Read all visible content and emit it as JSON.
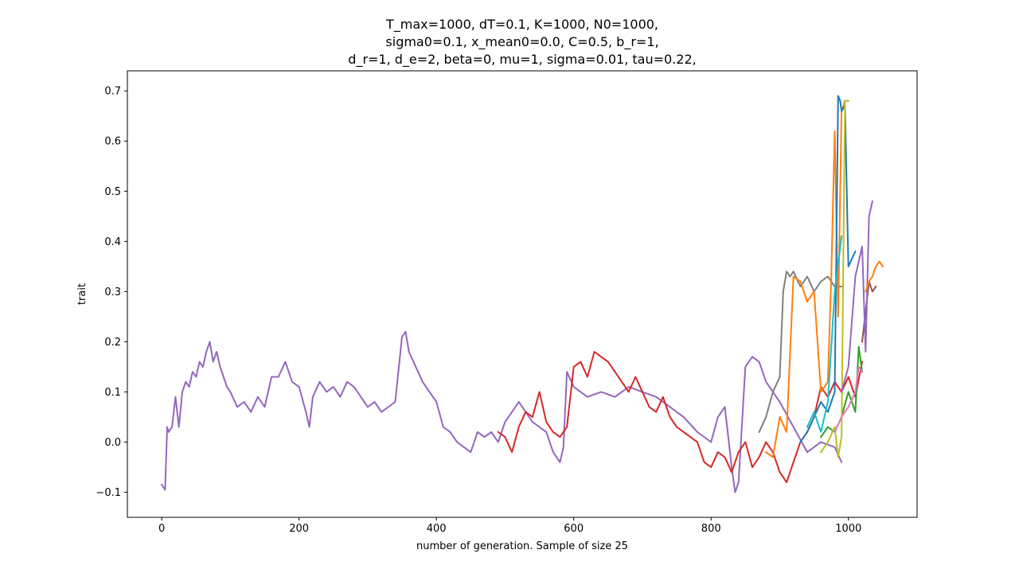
{
  "chart_data": {
    "type": "line",
    "title_lines": [
      "T_max=1000, dT=0.1, K=1000, N0=1000,",
      "sigma0=0.1, x_mean0=0.0, C=0.5, b_r=1,",
      "d_r=1, d_e=2, beta=0, mu=1, sigma=0.01, tau=0.22,"
    ],
    "xlabel": "number of generation. Sample of size 25",
    "ylabel": "trait",
    "xlim": [
      -50,
      1100
    ],
    "ylim": [
      -0.15,
      0.74
    ],
    "xticks": [
      0,
      200,
      400,
      600,
      800,
      1000
    ],
    "xtick_labels": [
      "0",
      "200",
      "400",
      "600",
      "800",
      "1000"
    ],
    "yticks": [
      -0.1,
      0.0,
      0.1,
      0.2,
      0.3,
      0.4,
      0.5,
      0.6,
      0.7
    ],
    "ytick_labels": [
      "−0.1",
      "0.0",
      "0.1",
      "0.2",
      "0.3",
      "0.4",
      "0.5",
      "0.6",
      "0.7"
    ],
    "grid": false,
    "legend": "none",
    "series": [
      {
        "color": "#9467bd",
        "x": [
          0,
          5,
          8,
          10,
          15,
          20,
          25,
          30,
          35,
          40,
          45,
          50,
          55,
          60,
          65,
          70,
          75,
          80,
          85,
          90,
          95,
          100,
          110,
          120,
          130,
          140,
          150,
          160,
          170,
          180,
          190,
          200,
          210,
          215,
          220,
          230,
          240,
          250,
          260,
          270,
          280,
          290,
          300,
          310,
          320,
          330,
          340,
          350,
          355,
          360,
          370,
          380,
          390,
          400,
          410,
          420,
          430,
          440,
          450,
          460,
          470,
          480,
          490,
          500,
          510,
          520,
          530,
          540,
          550,
          560,
          570,
          580,
          585,
          590,
          600,
          620,
          640,
          660,
          680,
          700,
          720,
          740,
          760,
          780,
          800,
          810,
          820,
          830,
          835,
          840,
          850,
          860,
          870,
          880,
          890,
          900,
          920,
          940,
          960,
          980,
          990
        ],
        "y": [
          -0.085,
          -0.095,
          0.03,
          0.02,
          0.03,
          0.09,
          0.03,
          0.1,
          0.12,
          0.11,
          0.14,
          0.13,
          0.16,
          0.15,
          0.18,
          0.2,
          0.16,
          0.18,
          0.15,
          0.13,
          0.11,
          0.1,
          0.07,
          0.08,
          0.06,
          0.09,
          0.07,
          0.13,
          0.13,
          0.16,
          0.12,
          0.11,
          0.06,
          0.03,
          0.09,
          0.12,
          0.1,
          0.11,
          0.09,
          0.12,
          0.11,
          0.09,
          0.07,
          0.08,
          0.06,
          0.07,
          0.08,
          0.21,
          0.22,
          0.18,
          0.15,
          0.12,
          0.1,
          0.08,
          0.03,
          0.02,
          0.0,
          -0.01,
          -0.02,
          0.02,
          0.01,
          0.02,
          0.0,
          0.04,
          0.06,
          0.08,
          0.06,
          0.04,
          0.03,
          0.02,
          -0.02,
          -0.04,
          -0.01,
          0.14,
          0.11,
          0.09,
          0.1,
          0.09,
          0.11,
          0.1,
          0.09,
          0.07,
          0.05,
          0.02,
          0.0,
          0.05,
          0.07,
          -0.05,
          -0.1,
          -0.08,
          0.15,
          0.17,
          0.16,
          0.12,
          0.1,
          0.08,
          0.03,
          -0.02,
          0.0,
          -0.01,
          -0.04
        ]
      },
      {
        "color": "#d62728",
        "x": [
          490,
          500,
          510,
          520,
          530,
          540,
          550,
          560,
          570,
          580,
          590,
          600,
          610,
          620,
          630,
          640,
          650,
          660,
          670,
          680,
          690,
          700,
          710,
          720,
          730,
          740,
          750,
          760,
          770,
          780,
          790,
          800,
          810,
          820,
          830,
          840,
          850,
          860,
          870,
          880,
          890,
          900,
          910,
          920,
          930,
          940,
          950,
          960,
          970,
          980,
          990,
          1000,
          1010,
          1020
        ],
        "y": [
          0.02,
          0.01,
          -0.02,
          0.03,
          0.06,
          0.05,
          0.1,
          0.04,
          0.02,
          0.01,
          0.03,
          0.15,
          0.16,
          0.13,
          0.18,
          0.17,
          0.16,
          0.14,
          0.12,
          0.1,
          0.13,
          0.1,
          0.07,
          0.06,
          0.09,
          0.05,
          0.03,
          0.02,
          0.01,
          0.0,
          -0.04,
          -0.05,
          -0.02,
          -0.03,
          -0.06,
          -0.02,
          0.0,
          -0.05,
          -0.03,
          0.0,
          -0.02,
          -0.06,
          -0.08,
          -0.04,
          0.0,
          0.02,
          0.05,
          0.11,
          0.09,
          0.12,
          0.1,
          0.13,
          0.09,
          0.16
        ]
      },
      {
        "color": "#7f7f7f",
        "x": [
          870,
          880,
          890,
          900,
          905,
          910,
          915,
          920,
          930,
          940,
          950,
          960,
          970,
          980,
          990
        ],
        "y": [
          0.02,
          0.05,
          0.1,
          0.13,
          0.3,
          0.34,
          0.33,
          0.34,
          0.31,
          0.33,
          0.3,
          0.32,
          0.33,
          0.31,
          0.31
        ]
      },
      {
        "color": "#ff7f0e",
        "x": [
          880,
          890,
          900,
          910,
          920,
          930,
          940,
          950,
          960,
          970,
          975,
          980,
          985,
          990,
          995,
          1000
        ],
        "y": [
          -0.02,
          -0.03,
          0.05,
          0.02,
          0.33,
          0.32,
          0.28,
          0.3,
          0.1,
          0.12,
          0.33,
          0.62,
          0.25,
          0.66,
          0.68,
          0.68
        ]
      },
      {
        "color": "#1f77b4",
        "x": [
          930,
          940,
          950,
          960,
          970,
          980,
          985,
          988,
          990,
          995,
          1000,
          1010
        ],
        "y": [
          0.0,
          0.02,
          0.05,
          0.08,
          0.06,
          0.1,
          0.69,
          0.68,
          0.66,
          0.67,
          0.35,
          0.38
        ]
      },
      {
        "color": "#17becf",
        "x": [
          940,
          950,
          960,
          970,
          980,
          990
        ],
        "y": [
          0.03,
          0.06,
          0.02,
          0.08,
          0.3,
          0.41
        ]
      },
      {
        "color": "#2ca02c",
        "x": [
          960,
          970,
          980,
          990,
          1000,
          1010,
          1015,
          1020
        ],
        "y": [
          0.01,
          0.03,
          0.02,
          0.05,
          0.1,
          0.06,
          0.19,
          0.14
        ]
      },
      {
        "color": "#bcbd22",
        "x": [
          960,
          970,
          980,
          985,
          990,
          995,
          1000
        ],
        "y": [
          -0.02,
          0.0,
          0.03,
          -0.03,
          0.01,
          0.68,
          0.68
        ]
      },
      {
        "color": "#e377c2",
        "x": [
          980,
          990,
          1000,
          1010,
          1015,
          1020
        ],
        "y": [
          0.02,
          0.05,
          0.07,
          0.1,
          0.15,
          0.14
        ]
      },
      {
        "color": "#8c564b",
        "x": [
          1020,
          1030,
          1035,
          1040
        ],
        "y": [
          0.2,
          0.32,
          0.3,
          0.31
        ]
      },
      {
        "color": "#9467bd",
        "x": [
          990,
          1000,
          1010,
          1020,
          1025,
          1030,
          1035
        ],
        "y": [
          0.1,
          0.15,
          0.33,
          0.39,
          0.18,
          0.45,
          0.48
        ]
      },
      {
        "color": "#ff7f0e",
        "x": [
          1025,
          1030,
          1035,
          1040,
          1045,
          1050
        ],
        "y": [
          0.3,
          0.32,
          0.33,
          0.35,
          0.36,
          0.35
        ]
      }
    ]
  }
}
